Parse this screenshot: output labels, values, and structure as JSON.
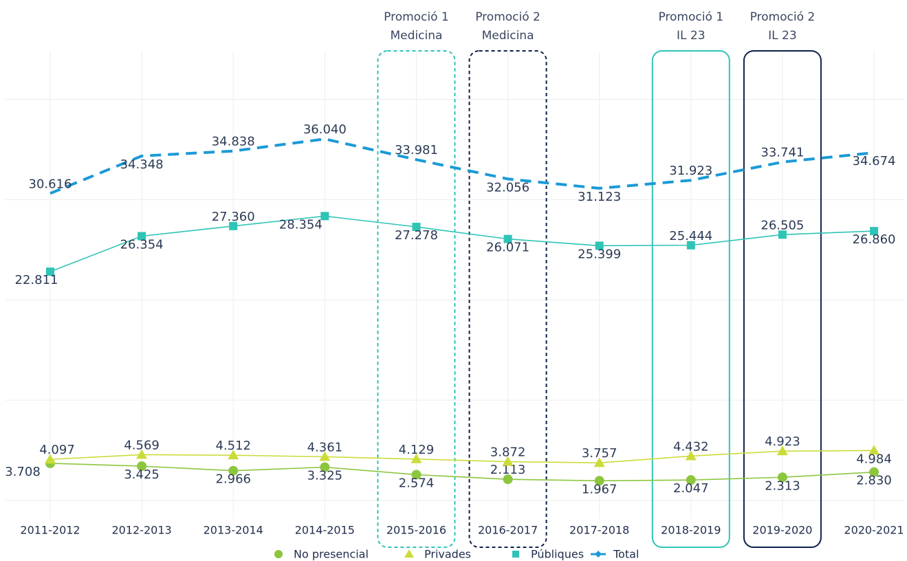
{
  "chart_data": {
    "type": "line",
    "categories": [
      "2011-2012",
      "2012-2013",
      "2013-2014",
      "2014-2015",
      "2015-2016",
      "2016-2017",
      "2017-2018",
      "2018-2019",
      "2019-2020",
      "2020-2021"
    ],
    "series": [
      {
        "name": "No presencial",
        "color": "#8cc63f",
        "marker": "circle",
        "dashed": false,
        "values": [
          3708,
          3425,
          2966,
          3325,
          2574,
          2113,
          1967,
          2047,
          2313,
          2830
        ],
        "value_labels": [
          "3.708",
          "3.425",
          "2.966",
          "3.325",
          "2.574",
          "2.113",
          "1.967",
          "2.047",
          "2.313",
          "2.830"
        ]
      },
      {
        "name": "Privades",
        "color": "#cbdc3a",
        "marker": "triangle",
        "dashed": false,
        "values": [
          4097,
          4569,
          4512,
          4361,
          4129,
          3872,
          3757,
          4432,
          4923,
          4984
        ],
        "value_labels": [
          "4.097",
          "4.569",
          "4.512",
          "4.361",
          "4.129",
          "3.872",
          "3.757",
          "4.432",
          "4.923",
          "4.984"
        ]
      },
      {
        "name": "Públiques",
        "color": "#2ec4b6",
        "marker": "square",
        "dashed": false,
        "values": [
          22811,
          26354,
          27360,
          28354,
          27278,
          26071,
          25399,
          25444,
          26505,
          26860
        ],
        "value_labels": [
          "22.811",
          "26.354",
          "27.360",
          "28.354",
          "27.278",
          "26.071",
          "25.399",
          "25.444",
          "26.505",
          "26.860"
        ]
      },
      {
        "name": "Total",
        "color": "#1b9ad6",
        "marker": "diamond",
        "dashed": true,
        "values": [
          30616,
          34348,
          34838,
          36040,
          33981,
          32056,
          31123,
          31923,
          33741,
          34674
        ],
        "value_labels": [
          "30.616",
          "34.348",
          "34.838",
          "36.040",
          "33.981",
          "32.056",
          "31.123",
          "31.923",
          "33.741",
          "34.674"
        ]
      }
    ],
    "ylim": [
      -1000,
      43000
    ],
    "yticks": [
      0,
      10000,
      20000,
      30000,
      40000
    ],
    "grid": true,
    "legend": "bottom",
    "annotations": [
      {
        "x": "2015-2016",
        "lines": [
          "Promoció 1",
          "Medicina"
        ],
        "color": "#2ec4b6",
        "dashed": true
      },
      {
        "x": "2016-2017",
        "lines": [
          "Promoció 2",
          "Medicina"
        ],
        "color": "#0d1f4a",
        "dashed": true
      },
      {
        "x": "2018-2019",
        "lines": [
          "Promoció 1",
          "IL 23"
        ],
        "color": "#2ec4b6",
        "dashed": false
      },
      {
        "x": "2019-2020",
        "lines": [
          "Promoció 2",
          "IL 23"
        ],
        "color": "#0d1f4a",
        "dashed": false
      }
    ]
  }
}
